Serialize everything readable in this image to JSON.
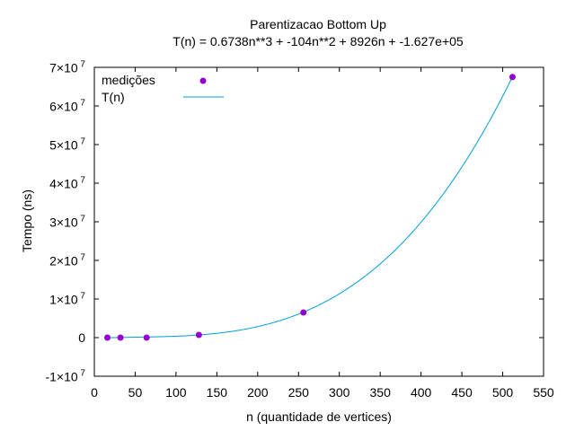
{
  "chart_data": {
    "type": "scatter",
    "title": "Parentizacao Bottom Up",
    "subtitle": "T(n) = 0.6738n**3 + -104n**2 + 8926n + -1.627e+05",
    "xlabel": "n (quantidade de vertices)",
    "ylabel": "Tempo (ns)",
    "xlim": [
      0,
      550
    ],
    "ylim": [
      -10000000,
      70000000
    ],
    "xticks": [
      "0",
      "50",
      "100",
      "150",
      "200",
      "250",
      "300",
      "350",
      "400",
      "450",
      "500",
      "550"
    ],
    "yticks": [
      {
        "base": "-1×10",
        "exp": "7"
      },
      {
        "base": "0",
        "exp": ""
      },
      {
        "base": "1×10",
        "exp": "7"
      },
      {
        "base": "2×10",
        "exp": "7"
      },
      {
        "base": "3×10",
        "exp": "7"
      },
      {
        "base": "4×10",
        "exp": "7"
      },
      {
        "base": "5×10",
        "exp": "7"
      },
      {
        "base": "6×10",
        "exp": "7"
      },
      {
        "base": "7×10",
        "exp": "7"
      }
    ],
    "grid": false,
    "legend_position": "top-left",
    "series": [
      {
        "name": "medições",
        "type": "scatter",
        "color": "#9400d3",
        "x": [
          16,
          32,
          64,
          128,
          256,
          512
        ],
        "y": [
          0,
          0,
          0,
          700000,
          6500000,
          67500000
        ]
      },
      {
        "name": "T(n)",
        "type": "line",
        "color": "#009ed8",
        "formula": {
          "a3": 0.6738,
          "a2": -104,
          "a1": 8926,
          "a0": -162700
        },
        "x_range": [
          16,
          512
        ]
      }
    ]
  }
}
